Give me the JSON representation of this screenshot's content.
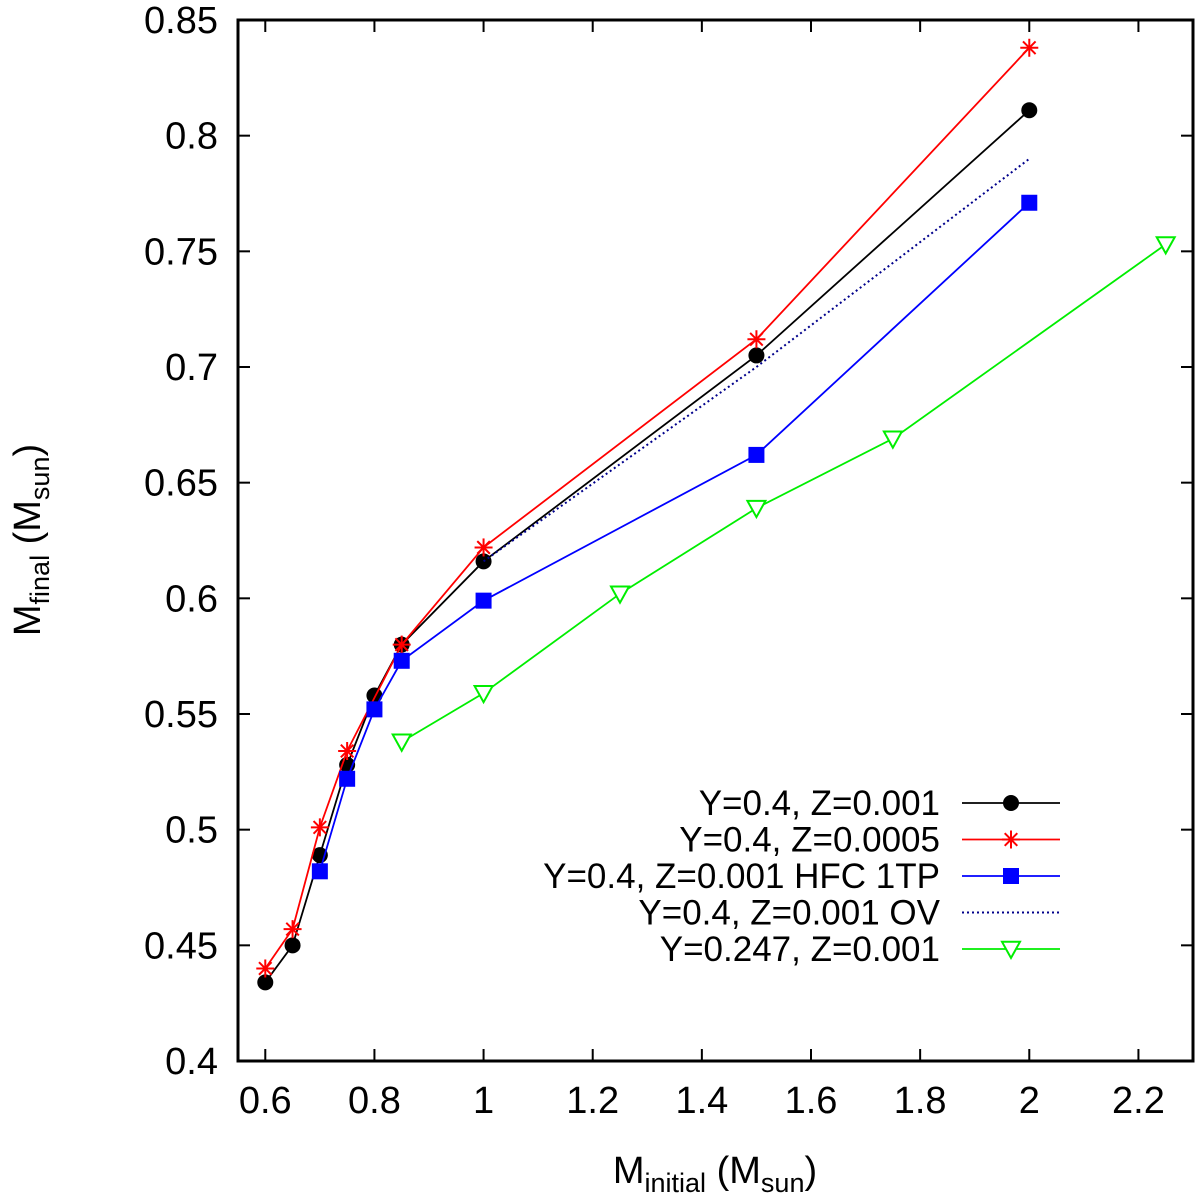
{
  "chart_data": {
    "type": "line",
    "title": "",
    "xlabel": {
      "main": "M",
      "sub": "initial",
      "unit_pre": " (M",
      "unit_sub": "sun",
      "unit_post": ")"
    },
    "ylabel": {
      "main": "M",
      "sub": "final",
      "unit_pre": " (M",
      "unit_sub": "sun",
      "unit_post": ")"
    },
    "xlim": [
      0.55,
      2.3
    ],
    "ylim": [
      0.4,
      0.85
    ],
    "xticks": [
      0.6,
      0.8,
      1,
      1.2,
      1.4,
      1.6,
      1.8,
      2,
      2.2
    ],
    "xtick_labels": [
      "0.6",
      "0.8",
      "1",
      "1.2",
      "1.4",
      "1.6",
      "1.8",
      "2",
      "2.2"
    ],
    "yticks": [
      0.4,
      0.45,
      0.5,
      0.55,
      0.6,
      0.65,
      0.7,
      0.75,
      0.8,
      0.85
    ],
    "ytick_labels": [
      "0.4",
      "0.45",
      "0.5",
      "0.55",
      "0.6",
      "0.65",
      "0.7",
      "0.75",
      "0.8",
      "0.85"
    ],
    "legend_position": "bottom-right",
    "series": [
      {
        "name": "Y=0.4, Z=0.001",
        "color": "#000000",
        "marker": "circle",
        "line": "solid",
        "x": [
          0.6,
          0.65,
          0.7,
          0.75,
          0.8,
          0.85,
          1.0,
          1.5,
          2.0
        ],
        "y": [
          0.434,
          0.45,
          0.489,
          0.528,
          0.558,
          0.58,
          0.616,
          0.705,
          0.811
        ]
      },
      {
        "name": "Y=0.4, Z=0.0005",
        "color": "#ff0000",
        "marker": "asterisk",
        "line": "solid",
        "x": [
          0.6,
          0.65,
          0.7,
          0.75,
          0.85,
          1.0,
          1.5,
          2.0
        ],
        "y": [
          0.44,
          0.457,
          0.501,
          0.534,
          0.58,
          0.622,
          0.712,
          0.838
        ]
      },
      {
        "name": "Y=0.4, Z=0.001 HFC 1TP",
        "color": "#0000ff",
        "marker": "square",
        "line": "solid",
        "x": [
          0.7,
          0.75,
          0.8,
          0.85,
          1.0,
          1.5,
          2.0
        ],
        "y": [
          0.482,
          0.522,
          0.552,
          0.573,
          0.599,
          0.662,
          0.771
        ]
      },
      {
        "name": "Y=0.4, Z=0.001 OV",
        "color": "#00008b",
        "marker": "none",
        "line": "dotted",
        "x": [
          1.0,
          1.5,
          2.0
        ],
        "y": [
          0.616,
          0.7,
          0.79
        ]
      },
      {
        "name": "Y=0.247, Z=0.001",
        "color": "#00ee00",
        "marker": "triangle-down-open",
        "line": "solid",
        "x": [
          0.85,
          1.0,
          1.25,
          1.5,
          1.75,
          2.25
        ],
        "y": [
          0.538,
          0.559,
          0.602,
          0.639,
          0.669,
          0.753
        ]
      }
    ]
  }
}
